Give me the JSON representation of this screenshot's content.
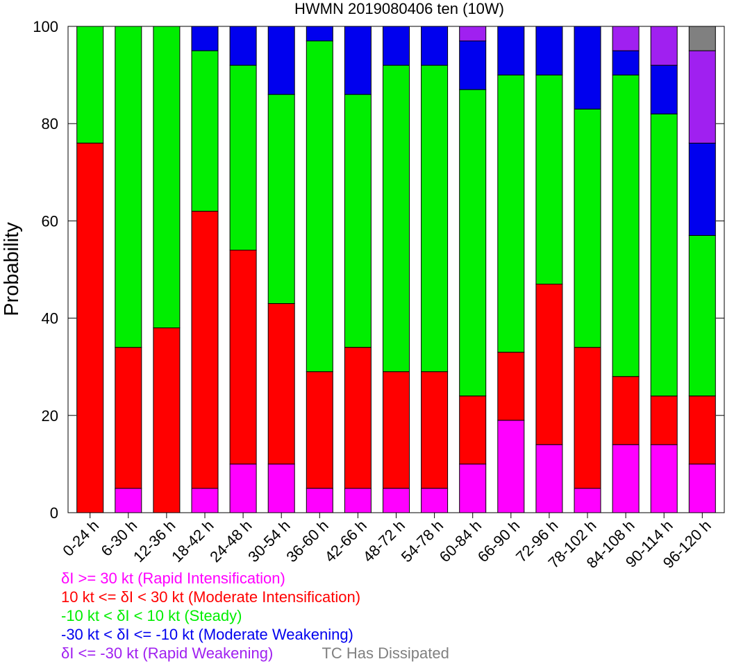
{
  "chart_data": {
    "type": "bar",
    "stacked": true,
    "title": "HWMN 2019080406 ten (10W)",
    "ylabel": "Probability",
    "xlabel": "",
    "ylim": [
      0,
      100
    ],
    "yticks": [
      0,
      20,
      40,
      60,
      80,
      100
    ],
    "categories": [
      "0-24 h",
      "6-30 h",
      "12-36 h",
      "18-42 h",
      "24-48 h",
      "30-54 h",
      "36-60 h",
      "42-66 h",
      "48-72 h",
      "54-78 h",
      "60-84 h",
      "66-90 h",
      "72-96 h",
      "78-102 h",
      "84-108 h",
      "90-114 h",
      "96-120 h"
    ],
    "series": [
      {
        "name": "δI >= 30 kt (Rapid Intensification)",
        "color": "#ff00ff",
        "values": [
          0,
          5,
          0,
          5,
          10,
          10,
          5,
          5,
          5,
          5,
          10,
          19,
          14,
          5,
          14,
          14,
          10
        ]
      },
      {
        "name": "10 kt <= δI < 30 kt (Moderate Intensification)",
        "color": "#ff0000",
        "values": [
          76,
          29,
          38,
          57,
          44,
          33,
          24,
          29,
          24,
          24,
          14,
          14,
          33,
          29,
          14,
          10,
          14
        ]
      },
      {
        "name": "-10 kt < δI < 10 kt (Steady)",
        "color": "#00ee00",
        "values": [
          24,
          66,
          62,
          33,
          38,
          43,
          68,
          52,
          63,
          63,
          63,
          57,
          43,
          49,
          62,
          58,
          33
        ]
      },
      {
        "name": "-30 kt < δI <= -10 kt (Moderate Weakening)",
        "color": "#0000ee",
        "values": [
          0,
          0,
          0,
          5,
          8,
          14,
          3,
          14,
          8,
          8,
          10,
          10,
          10,
          17,
          5,
          10,
          19
        ]
      },
      {
        "name": "δI <= -30 kt (Rapid Weakening)",
        "color": "#a020f0",
        "values": [
          0,
          0,
          0,
          0,
          0,
          0,
          0,
          0,
          0,
          0,
          3,
          0,
          0,
          0,
          5,
          8,
          19
        ]
      },
      {
        "name": "TC Has Dissipated",
        "color": "#808080",
        "values": [
          0,
          0,
          0,
          0,
          0,
          0,
          0,
          0,
          0,
          0,
          0,
          0,
          0,
          0,
          0,
          0,
          5
        ]
      }
    ],
    "grid": false,
    "legend_position": "bottom"
  }
}
